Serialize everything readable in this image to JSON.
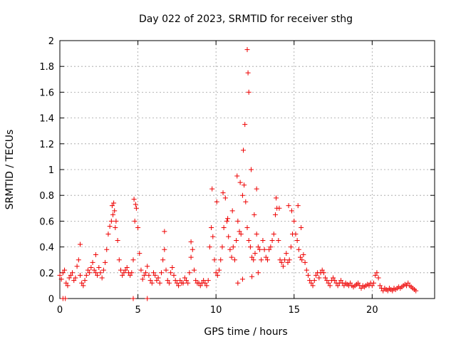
{
  "chart_data": {
    "type": "scatter",
    "title": "Day 022 of 2023, SRMTID for receiver sthg",
    "xlabel": "GPS time / hours",
    "ylabel": "SRMTID / TECUs",
    "xlim": [
      0,
      24
    ],
    "ylim": [
      0,
      2
    ],
    "xticks": [
      0,
      5,
      10,
      15,
      20
    ],
    "xtick_labels": [
      "0",
      "5",
      "10",
      "15",
      "20"
    ],
    "yticks": [
      0,
      0.2,
      0.4,
      0.6,
      0.8,
      1,
      1.2,
      1.4,
      1.6,
      1.8,
      2
    ],
    "ytick_labels": [
      "0",
      "0.2",
      "0.4",
      "0.6",
      "0.8",
      "1",
      "1.2",
      "1.4",
      "1.6",
      "1.8",
      "2"
    ],
    "grid": true,
    "marker": "+",
    "marker_color": "#ee0000",
    "series": [
      {
        "name": "SRMTID",
        "x": [
          0.0,
          0.1,
          0.2,
          0.3,
          0.4,
          0.5,
          0.6,
          0.7,
          0.8,
          0.9,
          1.0,
          1.1,
          1.2,
          1.3,
          1.4,
          1.5,
          1.6,
          1.7,
          1.8,
          1.9,
          2.0,
          2.1,
          2.2,
          2.3,
          2.4,
          2.5,
          2.6,
          2.7,
          2.8,
          2.9,
          3.0,
          3.1,
          3.2,
          3.3,
          3.4,
          3.5,
          3.6,
          3.7,
          3.8,
          3.9,
          4.0,
          4.1,
          4.2,
          4.3,
          4.4,
          4.5,
          4.6,
          4.7,
          4.8,
          4.9,
          5.0,
          5.1,
          5.2,
          5.3,
          5.4,
          5.5,
          5.6,
          5.7,
          5.8,
          5.9,
          6.0,
          6.1,
          6.2,
          6.3,
          6.4,
          6.5,
          6.6,
          6.7,
          6.8,
          6.9,
          7.0,
          7.1,
          7.2,
          7.3,
          7.4,
          7.5,
          7.6,
          7.7,
          7.8,
          7.9,
          8.0,
          8.1,
          8.2,
          8.3,
          8.4,
          8.5,
          8.6,
          8.7,
          8.8,
          8.9,
          9.0,
          9.1,
          9.2,
          9.3,
          9.4,
          9.5,
          9.6,
          9.7,
          9.8,
          9.9,
          10.0,
          10.1,
          10.2,
          10.3,
          10.4,
          10.5,
          10.6,
          10.7,
          10.8,
          10.9,
          11.0,
          11.1,
          11.2,
          11.3,
          11.4,
          11.5,
          11.6,
          11.7,
          11.8,
          11.9,
          12.0,
          12.1,
          12.2,
          12.3,
          12.4,
          12.5,
          12.6,
          12.7,
          12.8,
          12.9,
          13.0,
          13.1,
          13.2,
          13.3,
          13.4,
          13.5,
          13.6,
          13.7,
          13.8,
          13.9,
          14.0,
          14.1,
          14.2,
          14.3,
          14.4,
          14.5,
          14.6,
          14.7,
          14.8,
          14.9,
          15.0,
          15.1,
          15.2,
          15.3,
          15.4,
          15.5,
          15.6,
          15.7,
          15.8,
          15.9,
          16.0,
          16.1,
          16.2,
          16.3,
          16.4,
          16.5,
          16.6,
          16.7,
          16.8,
          16.9,
          17.0,
          17.1,
          17.2,
          17.3,
          17.4,
          17.5,
          17.6,
          17.7,
          17.8,
          17.9,
          18.0,
          18.1,
          18.2,
          18.3,
          18.4,
          18.5,
          18.6,
          18.7,
          18.8,
          18.9,
          19.0,
          19.1,
          19.2,
          19.3,
          19.4,
          19.5,
          19.6,
          19.7,
          19.8,
          19.9,
          20.0,
          20.1,
          20.2,
          20.3,
          20.4,
          20.5,
          20.6,
          20.7,
          20.8,
          20.9,
          21.0,
          21.1,
          21.2,
          21.3,
          21.4,
          21.5,
          21.6,
          21.7,
          21.8,
          21.9,
          22.0,
          22.1,
          22.2,
          22.3,
          22.4,
          22.5,
          22.6,
          22.7,
          22.8,
          3.35,
          3.45,
          3.55,
          4.75,
          4.85,
          10.45,
          10.75,
          11.05,
          11.35,
          11.55,
          11.75,
          11.85,
          12.0,
          12.05,
          12.1,
          12.25,
          12.45,
          12.6,
          13.85,
          14.05,
          14.65,
          14.85,
          15.25,
          15.45,
          9.75,
          10.05,
          6.7,
          8.4,
          1.3,
          2.3,
          0.2,
          0.35,
          4.7,
          5.6,
          11.4,
          11.7,
          12.3,
          12.7
        ],
        "y": [
          0.18,
          0.15,
          0.2,
          0.22,
          0.12,
          0.1,
          0.16,
          0.18,
          0.2,
          0.14,
          0.16,
          0.25,
          0.3,
          0.18,
          0.12,
          0.1,
          0.14,
          0.18,
          0.22,
          0.2,
          0.24,
          0.28,
          0.22,
          0.2,
          0.18,
          0.24,
          0.2,
          0.16,
          0.22,
          0.28,
          0.38,
          0.5,
          0.56,
          0.6,
          0.65,
          0.68,
          0.6,
          0.45,
          0.3,
          0.22,
          0.18,
          0.2,
          0.22,
          0.24,
          0.2,
          0.18,
          0.2,
          0.3,
          0.6,
          0.7,
          0.55,
          0.35,
          0.22,
          0.15,
          0.18,
          0.2,
          0.25,
          0.18,
          0.14,
          0.12,
          0.2,
          0.18,
          0.14,
          0.16,
          0.12,
          0.2,
          0.3,
          0.38,
          0.22,
          0.14,
          0.12,
          0.2,
          0.24,
          0.18,
          0.14,
          0.12,
          0.1,
          0.14,
          0.12,
          0.12,
          0.16,
          0.14,
          0.12,
          0.2,
          0.32,
          0.38,
          0.22,
          0.14,
          0.12,
          0.12,
          0.1,
          0.12,
          0.14,
          0.12,
          0.1,
          0.14,
          0.4,
          0.55,
          0.48,
          0.3,
          0.2,
          0.18,
          0.22,
          0.3,
          0.4,
          0.55,
          0.78,
          0.6,
          0.48,
          0.38,
          0.32,
          0.4,
          0.3,
          0.45,
          0.6,
          0.52,
          0.5,
          0.8,
          0.88,
          0.75,
          0.55,
          0.45,
          0.4,
          0.32,
          0.3,
          0.35,
          0.5,
          0.4,
          0.38,
          0.3,
          0.45,
          0.38,
          0.32,
          0.3,
          0.38,
          0.4,
          0.45,
          0.5,
          0.65,
          0.7,
          0.45,
          0.3,
          0.28,
          0.25,
          0.3,
          0.35,
          0.28,
          0.3,
          0.4,
          0.5,
          0.6,
          0.5,
          0.45,
          0.38,
          0.32,
          0.3,
          0.34,
          0.28,
          0.22,
          0.18,
          0.14,
          0.12,
          0.1,
          0.14,
          0.18,
          0.2,
          0.16,
          0.2,
          0.22,
          0.2,
          0.16,
          0.14,
          0.12,
          0.1,
          0.14,
          0.16,
          0.14,
          0.12,
          0.1,
          0.12,
          0.14,
          0.12,
          0.1,
          0.12,
          0.11,
          0.1,
          0.12,
          0.1,
          0.09,
          0.1,
          0.11,
          0.12,
          0.1,
          0.08,
          0.1,
          0.09,
          0.1,
          0.11,
          0.1,
          0.12,
          0.1,
          0.12,
          0.18,
          0.2,
          0.16,
          0.1,
          0.08,
          0.06,
          0.08,
          0.07,
          0.06,
          0.08,
          0.07,
          0.06,
          0.08,
          0.07,
          0.08,
          0.09,
          0.08,
          0.09,
          0.1,
          0.11,
          0.1,
          0.12,
          0.1,
          0.09,
          0.08,
          0.07,
          0.06,
          0.72,
          0.74,
          0.55,
          0.77,
          0.73,
          0.82,
          0.62,
          0.68,
          0.95,
          0.9,
          1.15,
          1.35,
          1.93,
          1.75,
          1.6,
          1.0,
          0.65,
          0.85,
          0.78,
          0.7,
          0.72,
          0.68,
          0.72,
          0.55,
          0.85,
          0.75,
          0.52,
          0.44,
          0.42,
          0.34,
          0.0,
          0.0,
          0.0,
          0.0,
          0.12,
          0.15,
          0.17,
          0.2
        ]
      }
    ]
  }
}
